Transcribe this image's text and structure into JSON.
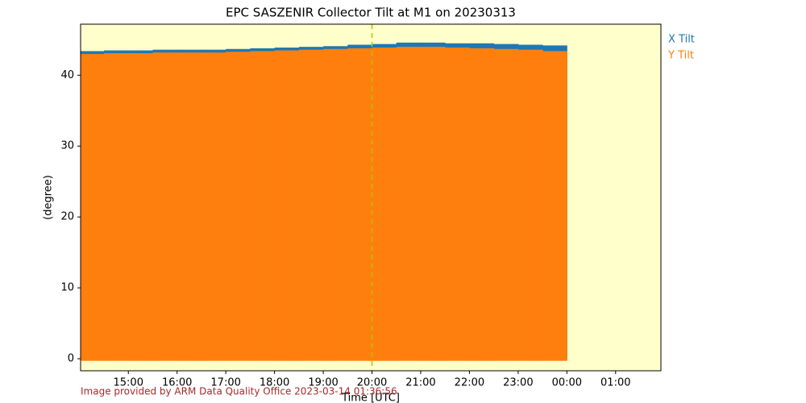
{
  "chart_data": {
    "type": "range",
    "title": "EPC SASZENIR Collector Tilt at M1 on 20230313",
    "x_label": "Time [UTC]",
    "y_label": "(degree)",
    "footer": "Image provided by ARM Data Quality Office 2023-03-14 01:36:56",
    "background": "#ffffcc",
    "vline": {
      "x": 20,
      "color": "#b5c400"
    },
    "x": [
      14.25,
      14.75,
      15.25,
      15.75,
      16.25,
      16.75,
      17.25,
      17.75,
      18.25,
      18.75,
      19.25,
      19.75,
      20.25,
      20.75,
      21.25,
      21.75,
      22.25,
      22.75,
      23.25,
      23.75
    ],
    "series": [
      {
        "name": "X Tilt",
        "color": "#1f77b4",
        "low": [
          0,
          0,
          0,
          0,
          0,
          0,
          0,
          0,
          0,
          0,
          0,
          0,
          0,
          0,
          0,
          0,
          0,
          0,
          0,
          0
        ],
        "high": [
          43.4,
          43.5,
          43.5,
          43.6,
          43.6,
          43.6,
          43.7,
          43.8,
          43.9,
          44.0,
          44.1,
          44.3,
          44.4,
          44.6,
          44.6,
          44.5,
          44.5,
          44.4,
          44.3,
          44.2
        ]
      },
      {
        "name": "Y Tilt",
        "color": "#ff7f0e",
        "low": [
          -0.3,
          -0.3,
          -0.3,
          -0.3,
          -0.3,
          -0.3,
          -0.3,
          -0.3,
          -0.3,
          -0.3,
          -0.3,
          -0.3,
          -0.3,
          -0.3,
          -0.3,
          -0.3,
          -0.3,
          -0.3,
          -0.3,
          -0.3
        ],
        "high": [
          43.0,
          43.1,
          43.1,
          43.2,
          43.2,
          43.2,
          43.3,
          43.4,
          43.5,
          43.6,
          43.7,
          43.8,
          43.9,
          44.0,
          44.0,
          43.9,
          43.8,
          43.7,
          43.6,
          43.4
        ]
      }
    ],
    "xlim": [
      14.02,
      25.93
    ],
    "xticks": [
      {
        "value": 15,
        "label": "15:00"
      },
      {
        "value": 16,
        "label": "16:00"
      },
      {
        "value": 17,
        "label": "17:00"
      },
      {
        "value": 18,
        "label": "18:00"
      },
      {
        "value": 19,
        "label": "19:00"
      },
      {
        "value": 20,
        "label": "20:00"
      },
      {
        "value": 21,
        "label": "21:00"
      },
      {
        "value": 22,
        "label": "22:00"
      },
      {
        "value": 23,
        "label": "23:00"
      },
      {
        "value": 24,
        "label": "00:00"
      },
      {
        "value": 25,
        "label": "01:00"
      }
    ],
    "ylim": [
      -1.7,
      47.2
    ],
    "yticks": [
      0,
      10,
      20,
      30,
      40
    ]
  }
}
